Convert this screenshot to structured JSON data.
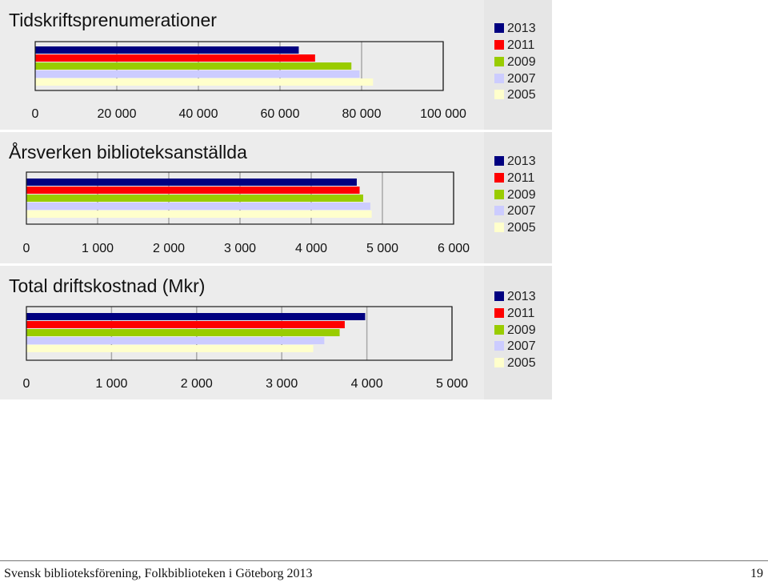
{
  "colors": {
    "2013": "#000080",
    "2011": "#ff0000",
    "2009": "#99cc00",
    "2007": "#ccccff",
    "2005": "#ffffcc",
    "plot_bg": "#ececec",
    "legend_bg": "#e6e6e6",
    "frame": "#1a1a1a",
    "grid": "#a8a8a8"
  },
  "chart_data": [
    {
      "type": "bar",
      "orientation": "horizontal",
      "title": "Tidskriftsprenumerationer",
      "xlim": [
        0,
        100000
      ],
      "ticks": [
        0,
        20000,
        40000,
        60000,
        80000,
        100000
      ],
      "tick_labels": [
        "0",
        "20 000",
        "40 000",
        "60 000",
        "80 000",
        "100 000"
      ],
      "grid": "vertical",
      "legend_position": "right",
      "series": [
        {
          "name": "2013",
          "value": 64600
        },
        {
          "name": "2011",
          "value": 68600
        },
        {
          "name": "2009",
          "value": 77500
        },
        {
          "name": "2007",
          "value": 79500
        },
        {
          "name": "2005",
          "value": 82800
        }
      ]
    },
    {
      "type": "bar",
      "orientation": "horizontal",
      "title": "Årsverken biblioteksanställda",
      "xlim": [
        0,
        6000
      ],
      "ticks": [
        0,
        1000,
        2000,
        3000,
        4000,
        5000,
        6000
      ],
      "tick_labels": [
        "0",
        "1 000",
        "2 000",
        "3 000",
        "4 000",
        "5 000",
        "6 000"
      ],
      "grid": "vertical",
      "legend_position": "right",
      "series": [
        {
          "name": "2013",
          "value": 4640
        },
        {
          "name": "2011",
          "value": 4680
        },
        {
          "name": "2009",
          "value": 4730
        },
        {
          "name": "2007",
          "value": 4830
        },
        {
          "name": "2005",
          "value": 4850
        }
      ]
    },
    {
      "type": "bar",
      "orientation": "horizontal",
      "title": "Total driftskostnad (Mkr)",
      "xlim": [
        0,
        5000
      ],
      "ticks": [
        0,
        1000,
        2000,
        3000,
        4000,
        5000
      ],
      "tick_labels": [
        "0",
        "1 000",
        "2 000",
        "3 000",
        "4 000",
        "5 000"
      ],
      "grid": "vertical",
      "legend_position": "right",
      "series": [
        {
          "name": "2013",
          "value": 3980
        },
        {
          "name": "2011",
          "value": 3740
        },
        {
          "name": "2009",
          "value": 3680
        },
        {
          "name": "2007",
          "value": 3500
        },
        {
          "name": "2005",
          "value": 3370
        }
      ]
    }
  ],
  "footer": {
    "text": "Svensk biblioteksförening, Folkbiblioteken i Göteborg 2013",
    "page_number": "19"
  }
}
